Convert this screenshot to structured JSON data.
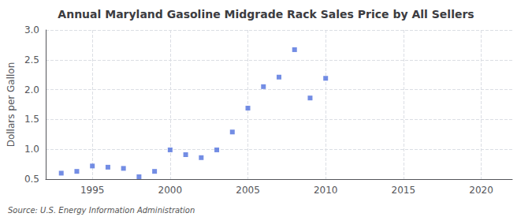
{
  "chart_data": {
    "type": "scatter",
    "title": "Annual Maryland Gasoline Midgrade Rack Sales Price by All Sellers",
    "y_label": "Dollars per Gallon",
    "annotations": [
      "Source: U.S. Energy Information Administration"
    ],
    "x": [
      1993,
      1994,
      1995,
      1996,
      1997,
      1998,
      1999,
      2000,
      2001,
      2002,
      2003,
      2004,
      2005,
      2006,
      2007,
      2008,
      2009,
      2010
    ],
    "values": [
      0.6,
      0.63,
      0.72,
      0.7,
      0.68,
      0.54,
      0.63,
      0.99,
      0.91,
      0.86,
      0.99,
      1.29,
      1.69,
      2.05,
      2.21,
      2.67,
      1.86,
      2.19
    ],
    "marker": "square",
    "xlim": [
      1992,
      2022
    ],
    "xticks": [
      1995,
      2000,
      2005,
      2010,
      2015,
      2020
    ],
    "ylim": [
      0.5,
      3.0
    ],
    "yticks": [
      0.5,
      {
        "value": 1.0,
        "label": "1.0"
      },
      1.5,
      {
        "value": 2.0,
        "label": "2.0"
      },
      2.5,
      {
        "value": 3.0,
        "label": "3.0"
      }
    ],
    "grid": true
  }
}
